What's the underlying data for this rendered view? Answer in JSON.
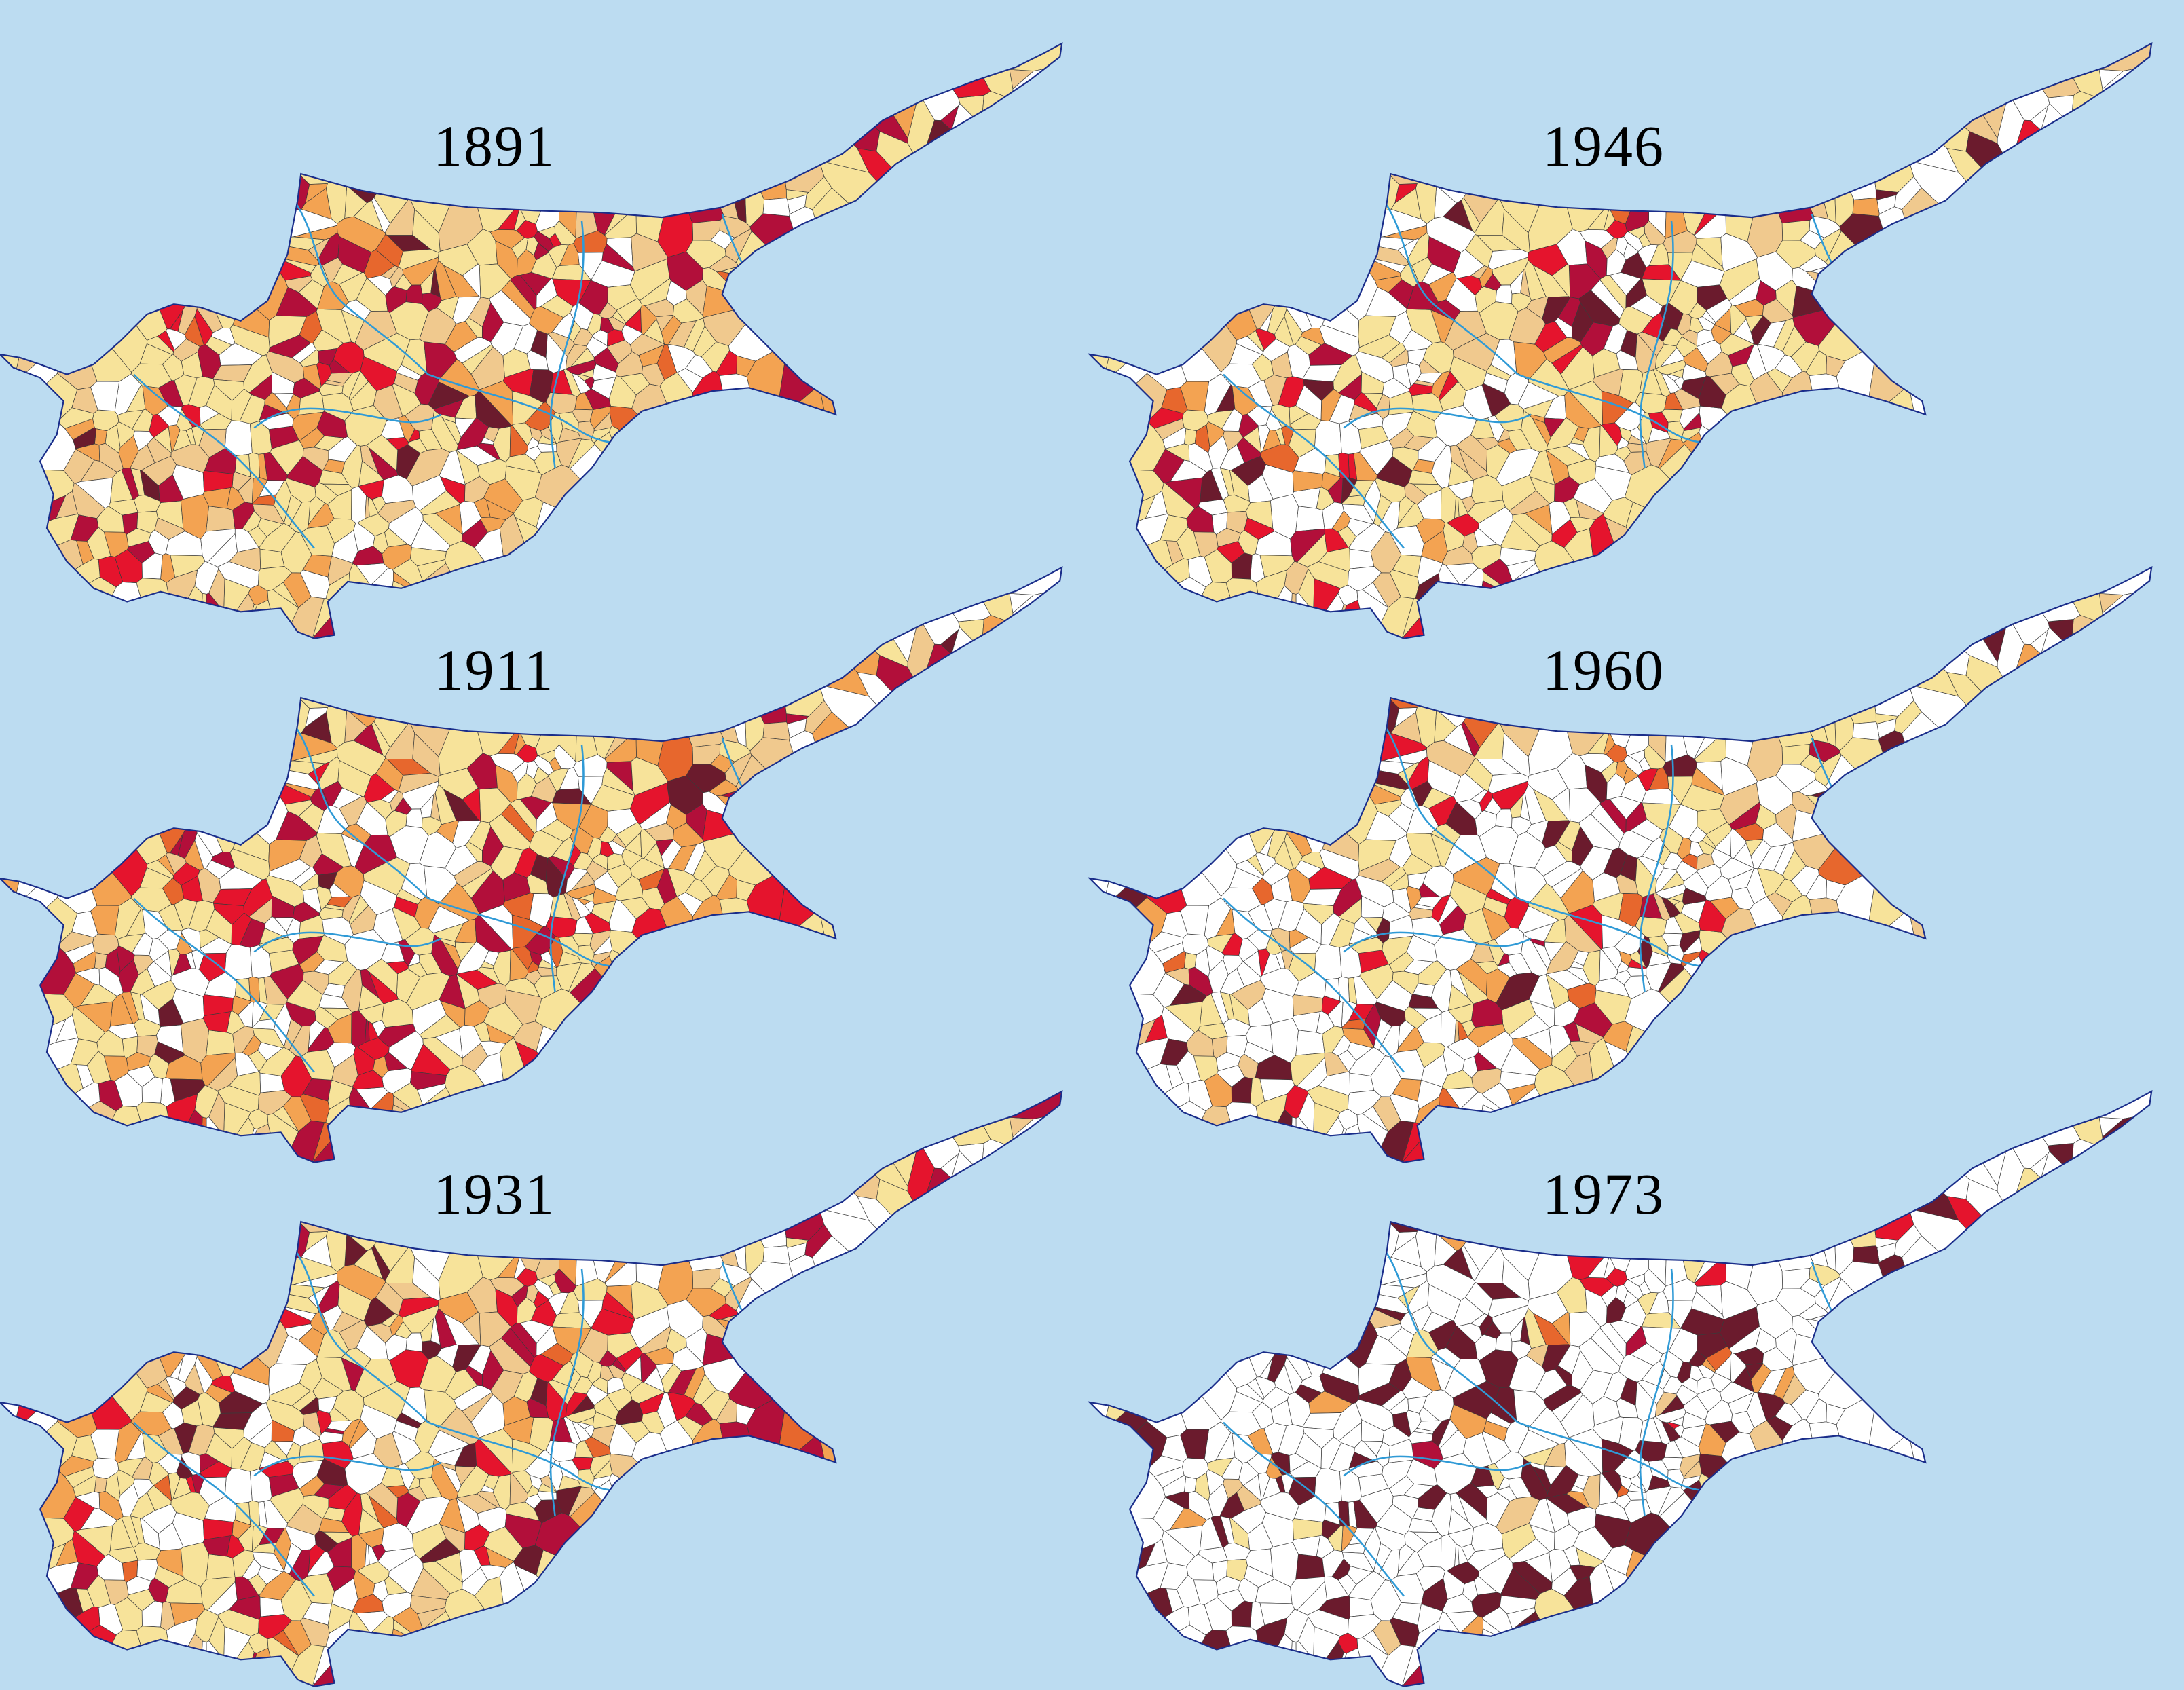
{
  "colors": {
    "sea": "#bcdcf1",
    "border": "#1a2d8a",
    "district_line": "#2f9ad6",
    "village_line": "#3a3a3a",
    "palette": [
      "#ffffff",
      "#f7e39a",
      "#f0c98e",
      "#f3a352",
      "#e7672d",
      "#e5142d",
      "#b20f3a",
      "#6b1b2d"
    ]
  },
  "maps": [
    {
      "year": "1891",
      "weights": [
        0.16,
        0.4,
        0.13,
        0.1,
        0.03,
        0.06,
        0.1,
        0.02
      ]
    },
    {
      "year": "1911",
      "weights": [
        0.22,
        0.34,
        0.12,
        0.11,
        0.03,
        0.07,
        0.09,
        0.02
      ]
    },
    {
      "year": "1931",
      "weights": [
        0.28,
        0.31,
        0.1,
        0.09,
        0.03,
        0.08,
        0.08,
        0.03
      ]
    },
    {
      "year": "1946",
      "weights": [
        0.34,
        0.3,
        0.12,
        0.06,
        0.02,
        0.06,
        0.05,
        0.05
      ]
    },
    {
      "year": "1960",
      "weights": [
        0.48,
        0.22,
        0.08,
        0.06,
        0.02,
        0.04,
        0.03,
        0.07
      ]
    },
    {
      "year": "1973",
      "weights": [
        0.7,
        0.05,
        0.03,
        0.04,
        0.01,
        0.02,
        0.01,
        0.14
      ]
    }
  ]
}
